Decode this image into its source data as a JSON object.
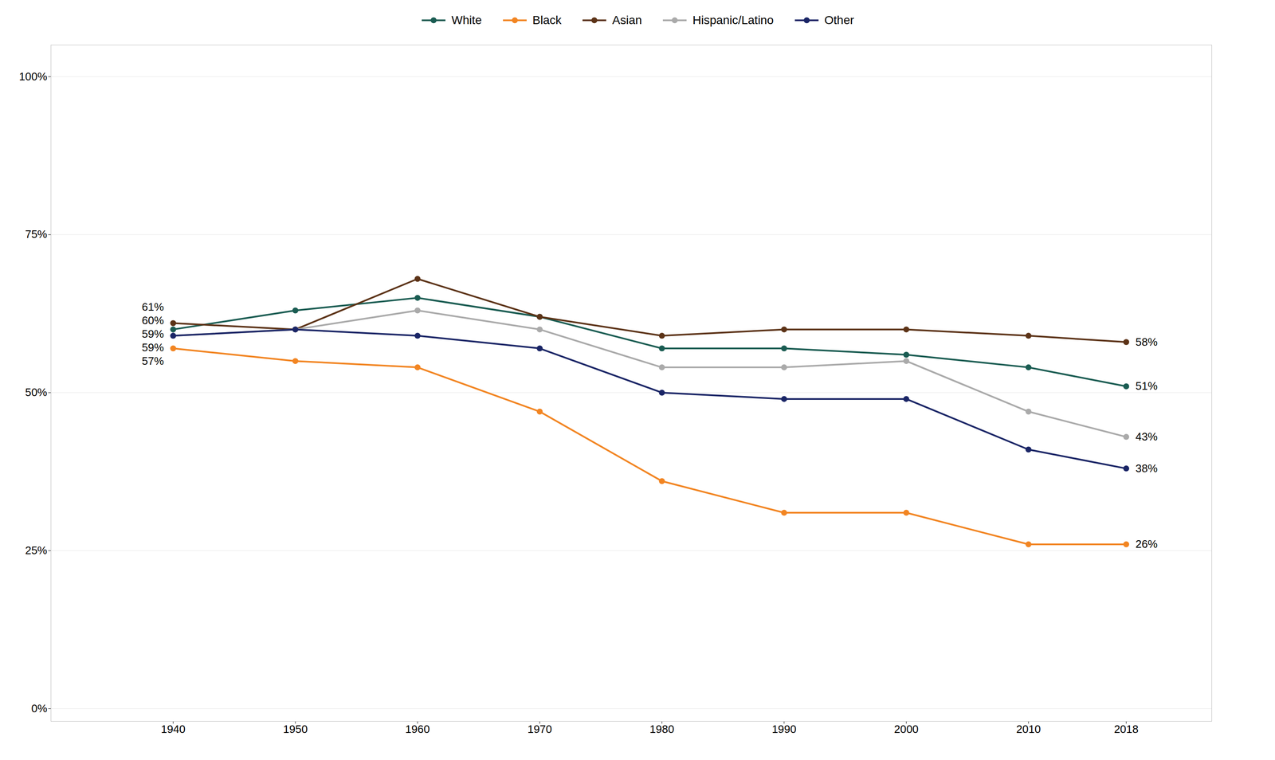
{
  "chart_data": {
    "type": "line",
    "x": [
      1940,
      1950,
      1960,
      1970,
      1980,
      1990,
      2000,
      2010,
      2018
    ],
    "series": [
      {
        "name": "White",
        "color": "#1a5c52",
        "marker": "circle",
        "values": [
          0.6,
          0.63,
          0.65,
          0.62,
          0.57,
          0.57,
          0.56,
          0.54,
          0.51
        ]
      },
      {
        "name": "Black",
        "color": "#f28522",
        "marker": "circle",
        "values": [
          0.57,
          0.55,
          0.54,
          0.47,
          0.36,
          0.31,
          0.31,
          0.26,
          0.26
        ]
      },
      {
        "name": "Asian",
        "color": "#5c3317",
        "marker": "circle",
        "values": [
          0.61,
          0.6,
          0.68,
          0.62,
          0.59,
          0.6,
          0.6,
          0.59,
          0.58
        ]
      },
      {
        "name": "Hispanic/Latino",
        "color": "#aaaaaa",
        "marker": "circle",
        "values": [
          0.59,
          0.6,
          0.63,
          0.6,
          0.54,
          0.54,
          0.55,
          0.47,
          0.43
        ]
      },
      {
        "name": "Other",
        "color": "#1a2566",
        "marker": "circle",
        "values": [
          0.59,
          0.6,
          0.59,
          0.57,
          0.5,
          0.49,
          0.49,
          0.41,
          0.38
        ]
      }
    ],
    "xlim": [
      1930,
      2025
    ],
    "xticks": [
      1940,
      1950,
      1960,
      1970,
      1980,
      1990,
      2000,
      2010,
      2018
    ],
    "ylim": [
      -0.02,
      1.05
    ],
    "yticks": [
      {
        "value": 0.0,
        "label": "0%"
      },
      {
        "value": 0.25,
        "label": "25%"
      },
      {
        "value": 0.5,
        "label": "50%"
      },
      {
        "value": 0.75,
        "label": "75%"
      },
      {
        "value": 1.0,
        "label": "100%"
      }
    ],
    "grid": "y",
    "legend": "top",
    "annotations": [
      {
        "text": "51%",
        "x": 2018,
        "y": 0.51
      },
      {
        "text": "26%",
        "x": 2018,
        "y": 0.26
      },
      {
        "text": "58%",
        "x": 2018,
        "y": 0.58
      },
      {
        "text": "43%",
        "x": 2018,
        "y": 0.43
      },
      {
        "text": "38%",
        "x": 2018,
        "y": 0.38
      },
      {
        "text": "60%",
        "x": 1940,
        "y": 0.603
      },
      {
        "text": "57%",
        "x": 1940,
        "y": 0.568
      },
      {
        "text": "61%",
        "x": 1940,
        "y": 0.617
      },
      {
        "text": "59%",
        "x": 1940,
        "y": 0.591
      },
      {
        "text": "59%",
        "x": 1940,
        "y": 0.582
      }
    ]
  }
}
